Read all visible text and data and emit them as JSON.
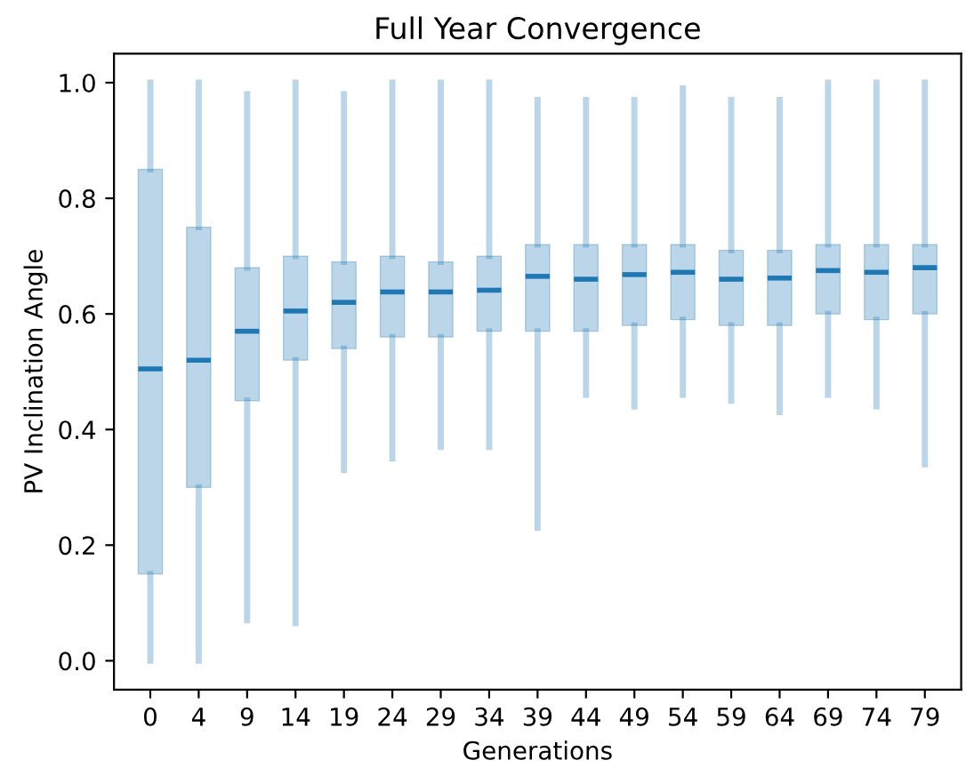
{
  "chart_data": {
    "type": "box",
    "title": "Full Year Convergence",
    "xlabel": "Generations",
    "ylabel": "PV Inclination Angle",
    "categories": [
      "0",
      "4",
      "9",
      "14",
      "19",
      "24",
      "29",
      "34",
      "39",
      "44",
      "49",
      "54",
      "59",
      "64",
      "69",
      "74",
      "79"
    ],
    "ylim": [
      -0.05,
      1.05
    ],
    "yticks": [
      {
        "value": 0,
        "label": "0.0"
      },
      {
        "value": 0.2,
        "label": "0.2"
      },
      {
        "value": 0.4,
        "label": "0.4"
      },
      {
        "value": 0.6,
        "label": "0.6"
      },
      {
        "value": 0.8,
        "label": "0.8"
      },
      {
        "value": 1,
        "label": "1.0"
      }
    ],
    "grid": false,
    "series": [
      {
        "color": "#1f77b4",
        "boxes": [
          {
            "low": 0.0,
            "q1": 0.15,
            "median": 0.505,
            "q3": 0.85,
            "high": 1.0
          },
          {
            "low": 0.0,
            "q1": 0.3,
            "median": 0.52,
            "q3": 0.75,
            "high": 1.0
          },
          {
            "low": 0.07,
            "q1": 0.45,
            "median": 0.57,
            "q3": 0.68,
            "high": 0.98
          },
          {
            "low": 0.065,
            "q1": 0.52,
            "median": 0.605,
            "q3": 0.7,
            "high": 1.0
          },
          {
            "low": 0.33,
            "q1": 0.54,
            "median": 0.62,
            "q3": 0.69,
            "high": 0.98
          },
          {
            "low": 0.35,
            "q1": 0.56,
            "median": 0.638,
            "q3": 0.7,
            "high": 1.0
          },
          {
            "low": 0.37,
            "q1": 0.56,
            "median": 0.638,
            "q3": 0.69,
            "high": 1.0
          },
          {
            "low": 0.37,
            "q1": 0.57,
            "median": 0.641,
            "q3": 0.7,
            "high": 1.0
          },
          {
            "low": 0.23,
            "q1": 0.57,
            "median": 0.665,
            "q3": 0.72,
            "high": 0.97
          },
          {
            "low": 0.46,
            "q1": 0.57,
            "median": 0.66,
            "q3": 0.72,
            "high": 0.97
          },
          {
            "low": 0.44,
            "q1": 0.58,
            "median": 0.668,
            "q3": 0.72,
            "high": 0.97
          },
          {
            "low": 0.46,
            "q1": 0.59,
            "median": 0.672,
            "q3": 0.72,
            "high": 0.99
          },
          {
            "low": 0.45,
            "q1": 0.58,
            "median": 0.66,
            "q3": 0.71,
            "high": 0.97
          },
          {
            "low": 0.43,
            "q1": 0.58,
            "median": 0.662,
            "q3": 0.71,
            "high": 0.97
          },
          {
            "low": 0.46,
            "q1": 0.6,
            "median": 0.675,
            "q3": 0.72,
            "high": 1.0
          },
          {
            "low": 0.44,
            "q1": 0.59,
            "median": 0.672,
            "q3": 0.72,
            "high": 1.0
          },
          {
            "low": 0.34,
            "q1": 0.6,
            "median": 0.68,
            "q3": 0.72,
            "high": 1.0
          }
        ]
      }
    ]
  }
}
